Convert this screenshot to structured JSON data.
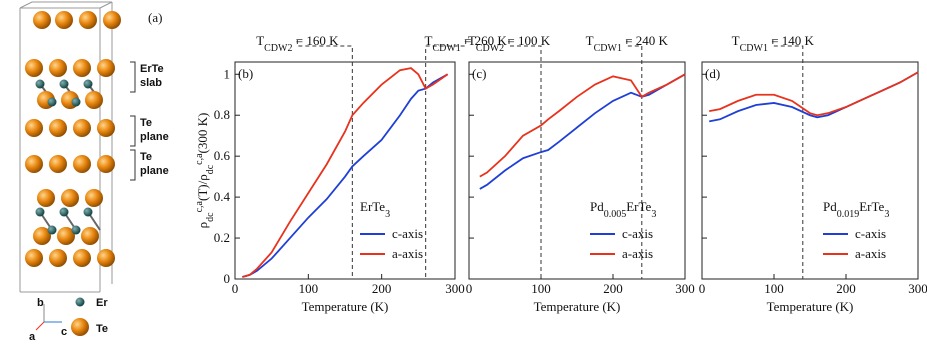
{
  "structure": {
    "panel_label": "(a)",
    "annotations": [
      [
        "ErTe",
        "slab"
      ],
      [
        "Te",
        "plane"
      ],
      [
        "Te",
        "plane"
      ]
    ],
    "legend": [
      "Er",
      "Te"
    ],
    "axes": [
      "b",
      "a",
      "c"
    ]
  },
  "chart_data": [
    {
      "type": "line",
      "panel_label": "(b)",
      "xlabel": "Temperature (K)",
      "ylabel": [
        "ρ",
        "dc",
        "c,a",
        "(T)/ρ",
        "dc",
        "c,a",
        "(300 K)"
      ],
      "material": [
        "ErTe",
        "3"
      ],
      "xlim": [
        0,
        300
      ],
      "ylim": [
        0,
        1.06
      ],
      "xticks": [
        0,
        100,
        200,
        300
      ],
      "yticks": [
        0,
        0.2,
        0.4,
        0.6,
        0.8,
        1
      ],
      "ytick_labels": true,
      "transitions": [
        {
          "label": [
            "T",
            "CDW2",
            " = 160 K"
          ],
          "value": 160
        },
        {
          "label": [
            "T",
            "CDW1",
            " = 260 K"
          ],
          "value": 260
        }
      ],
      "x": [
        10,
        20,
        30,
        50,
        75,
        100,
        125,
        150,
        160,
        175,
        200,
        225,
        240,
        250,
        260,
        270,
        290
      ],
      "series": [
        {
          "name": "c-axis",
          "color": "#1f3fd6",
          "values": [
            0.01,
            0.02,
            0.04,
            0.1,
            0.2,
            0.3,
            0.39,
            0.5,
            0.55,
            0.6,
            0.68,
            0.8,
            0.88,
            0.92,
            0.93,
            0.96,
            1.0
          ]
        },
        {
          "name": "a-axis",
          "color": "#e8321c",
          "values": [
            0.01,
            0.02,
            0.05,
            0.13,
            0.28,
            0.42,
            0.56,
            0.72,
            0.8,
            0.86,
            0.95,
            1.02,
            1.03,
            1.0,
            0.93,
            0.95,
            1.0
          ]
        }
      ]
    },
    {
      "type": "line",
      "panel_label": "(c)",
      "xlabel": "Temperature (K)",
      "material": [
        "Pd",
        "0.005",
        "ErTe",
        "3"
      ],
      "xlim": [
        0,
        300
      ],
      "ylim": [
        0,
        1.06
      ],
      "xticks": [
        0,
        100,
        200,
        300
      ],
      "yticks": [
        0,
        0.2,
        0.4,
        0.6,
        0.8,
        1
      ],
      "ytick_labels": false,
      "transitions": [
        {
          "label": [
            "T",
            "CDW2",
            " = 100 K"
          ],
          "value": 100
        },
        {
          "label": [
            "T",
            "CDW1",
            " = 240 K"
          ],
          "value": 240
        }
      ],
      "x": [
        15,
        25,
        50,
        75,
        100,
        110,
        125,
        150,
        175,
        200,
        225,
        240,
        250,
        275,
        300
      ],
      "series": [
        {
          "name": "c-axis",
          "color": "#1f3fd6",
          "values": [
            0.44,
            0.46,
            0.53,
            0.59,
            0.62,
            0.63,
            0.67,
            0.74,
            0.81,
            0.87,
            0.91,
            0.89,
            0.9,
            0.95,
            1.0
          ]
        },
        {
          "name": "a-axis",
          "color": "#e8321c",
          "values": [
            0.5,
            0.52,
            0.6,
            0.7,
            0.75,
            0.78,
            0.82,
            0.89,
            0.95,
            0.99,
            0.97,
            0.89,
            0.91,
            0.95,
            1.0
          ]
        }
      ]
    },
    {
      "type": "line",
      "panel_label": "(d)",
      "xlabel": "Temperature (K)",
      "material": [
        "Pd",
        "0.019",
        "ErTe",
        "3"
      ],
      "xlim": [
        0,
        300
      ],
      "ylim": [
        0,
        1.06
      ],
      "xticks": [
        0,
        100,
        200,
        300
      ],
      "yticks": [
        0,
        0.2,
        0.4,
        0.6,
        0.8,
        1
      ],
      "ytick_labels": false,
      "transitions": [
        {
          "label": [
            "T",
            "CDW1",
            " = 140 K"
          ],
          "value": 140
        }
      ],
      "x": [
        10,
        25,
        50,
        75,
        100,
        125,
        150,
        160,
        175,
        200,
        225,
        250,
        275,
        300
      ],
      "series": [
        {
          "name": "c-axis",
          "color": "#1f3fd6",
          "values": [
            0.77,
            0.78,
            0.82,
            0.85,
            0.86,
            0.84,
            0.8,
            0.79,
            0.8,
            0.84,
            0.88,
            0.92,
            0.96,
            1.01
          ]
        },
        {
          "name": "a-axis",
          "color": "#e8321c",
          "values": [
            0.82,
            0.83,
            0.87,
            0.9,
            0.9,
            0.87,
            0.81,
            0.8,
            0.81,
            0.84,
            0.88,
            0.92,
            0.96,
            1.01
          ]
        }
      ]
    }
  ]
}
